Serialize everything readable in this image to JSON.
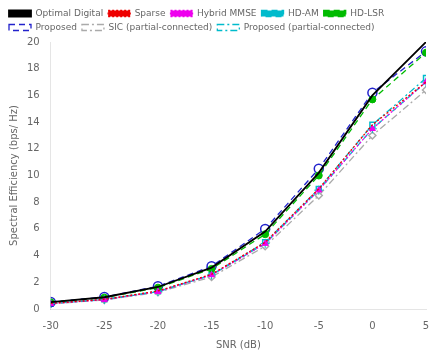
{
  "chart_data": {
    "type": "line",
    "x_label": "SNR (dB)",
    "y_label": "Spectral Efficiency (bps/ Hz)",
    "x": [
      -30,
      -25,
      -20,
      -15,
      -10,
      -5,
      0,
      5
    ],
    "series": [
      {
        "name": "Optimal Digital",
        "color": "#000000",
        "marker": "none",
        "line_style": "solid",
        "values": [
          0.52,
          0.88,
          1.65,
          3.1,
          5.8,
          10.2,
          16.0,
          20.0
        ]
      },
      {
        "name": "Sparse",
        "color": "#ee0000",
        "marker": "none",
        "line_style": "dotted",
        "values": [
          0.42,
          0.72,
          1.35,
          2.6,
          5.0,
          9.0,
          13.8,
          17.0
        ]
      },
      {
        "name": "Hybrid MMSE",
        "color": "#ee00ee",
        "marker": "triangle",
        "line_style": "dotted",
        "values": [
          0.4,
          0.7,
          1.3,
          2.55,
          4.9,
          8.9,
          13.5,
          17.0
        ]
      },
      {
        "name": "HD-AM",
        "color": "#00bbcc",
        "marker": "plus",
        "line_style": "dashed",
        "values": [
          0.4,
          0.7,
          1.3,
          2.55,
          4.9,
          8.9,
          13.5,
          17.0
        ]
      },
      {
        "name": "HD-LSR",
        "color": "#00bb00",
        "marker": "circle",
        "line_style": "dashed",
        "values": [
          0.5,
          0.85,
          1.6,
          3.0,
          5.6,
          10.0,
          15.7,
          19.2
        ]
      },
      {
        "name": "Proposed",
        "color": "#2222cc",
        "marker": "open_circle",
        "line_style": "dashed",
        "values": [
          0.52,
          0.9,
          1.7,
          3.2,
          6.0,
          10.5,
          16.2,
          19.3
        ]
      },
      {
        "name": "SIC (partial-connected)",
        "color": "#aaaaaa",
        "marker": "open_diamond",
        "line_style": "dashdot",
        "values": [
          0.38,
          0.68,
          1.25,
          2.4,
          4.7,
          8.5,
          13.0,
          16.4
        ]
      },
      {
        "name": "Proposed (partial-connected)",
        "color": "#00bbcc",
        "marker": "open_square",
        "line_style": "dashdot",
        "values": [
          0.4,
          0.72,
          1.32,
          2.55,
          5.0,
          9.0,
          13.8,
          17.3
        ]
      }
    ],
    "xlim": [
      -30,
      5
    ],
    "ylim": [
      0,
      20
    ],
    "xticks": [
      -30,
      -25,
      -20,
      -15,
      -10,
      -5,
      0,
      5
    ],
    "yticks": [
      0,
      2,
      4,
      6,
      8,
      10,
      12,
      14,
      16,
      18,
      20
    ],
    "grid": false,
    "legend": "upper left"
  }
}
